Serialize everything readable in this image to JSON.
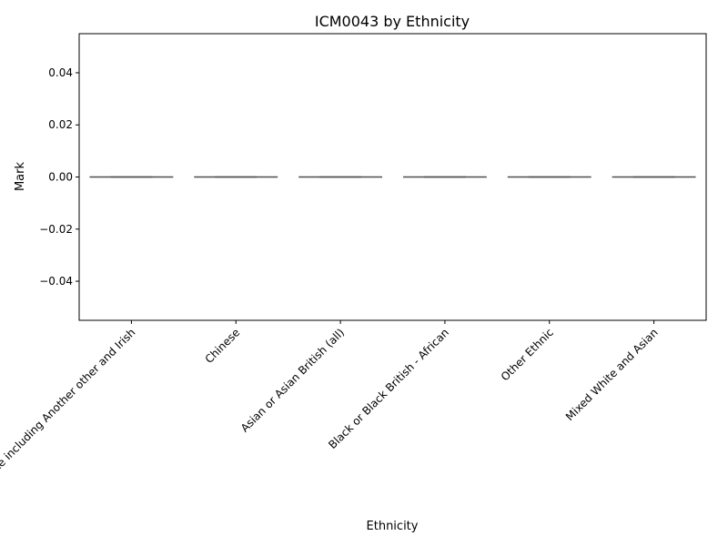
{
  "chart_data": {
    "type": "box",
    "title": "ICM0043 by Ethnicity",
    "xlabel": "Ethnicity",
    "ylabel": "Mark",
    "ylim": [
      -0.055,
      0.055
    ],
    "yticks": [
      -0.04,
      -0.02,
      0.0,
      0.02,
      0.04
    ],
    "ytick_labels": [
      "−0.04",
      "−0.02",
      "0.00",
      "0.02",
      "0.04"
    ],
    "categories": [
      "White including Another other and Irish",
      "Chinese",
      "Asian or Asian British (all)",
      "Black or Black British - African",
      "Other Ethnic",
      "Mixed White and Asian"
    ],
    "values": [
      0,
      0,
      0,
      0,
      0,
      0
    ],
    "grid": false,
    "legend": "none",
    "box_color": "#4d4d4d"
  }
}
